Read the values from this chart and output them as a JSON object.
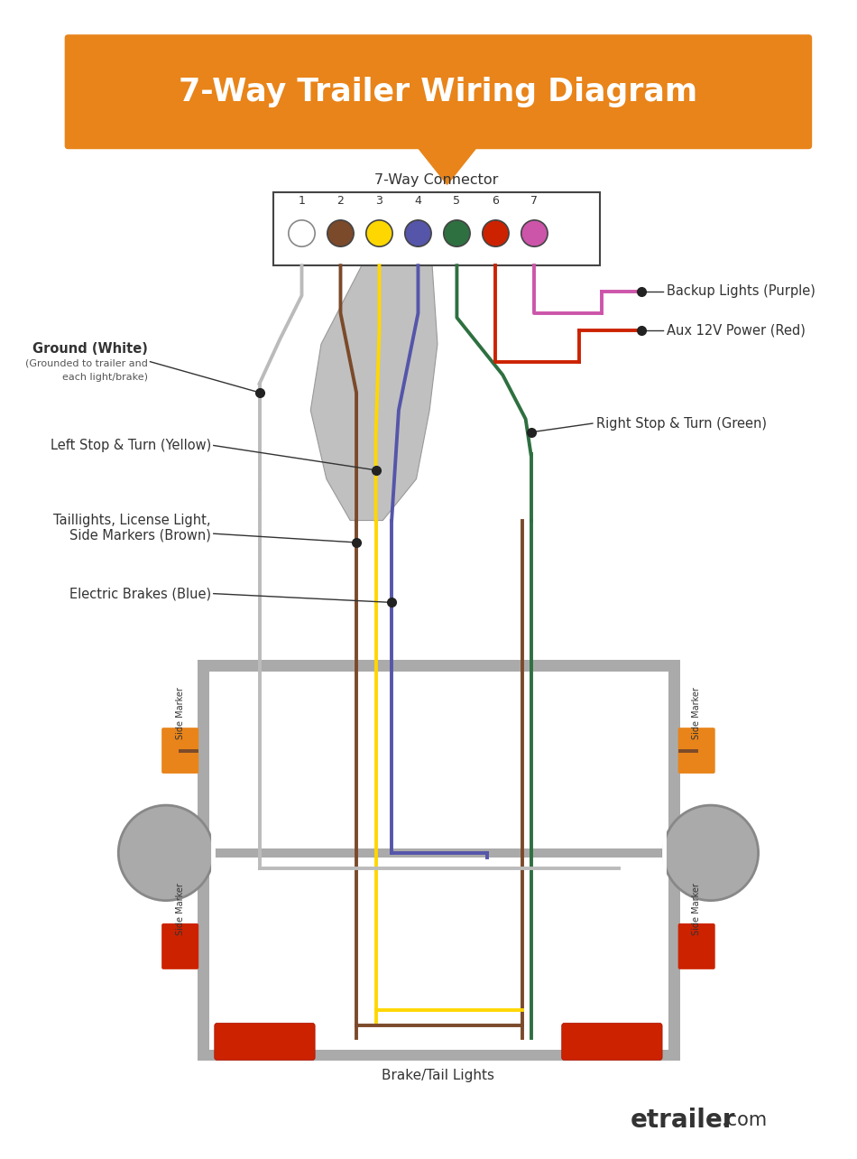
{
  "title": "7-Way Trailer Wiring Diagram",
  "title_color": "#FFFFFF",
  "title_bg_color": "#E8841A",
  "connector_label": "7-Way Connector",
  "pin_numbers": [
    "1",
    "2",
    "3",
    "4",
    "5",
    "6",
    "7"
  ],
  "pin_colors": [
    "#FFFFFF",
    "#7B4A2A",
    "#FFD700",
    "#5555AA",
    "#2E7040",
    "#CC2200",
    "#CC55AA"
  ],
  "wire_colors": [
    "#BBBBBB",
    "#7B4A2A",
    "#FFD700",
    "#5555AA",
    "#2E7040",
    "#CC2200",
    "#CC55AA"
  ],
  "bg_color": "#FFFFFF",
  "orange_color": "#E8841A",
  "trailer_gray": "#AAAAAA",
  "red_light": "#CC2200",
  "frame_color": "#AAAAAA"
}
